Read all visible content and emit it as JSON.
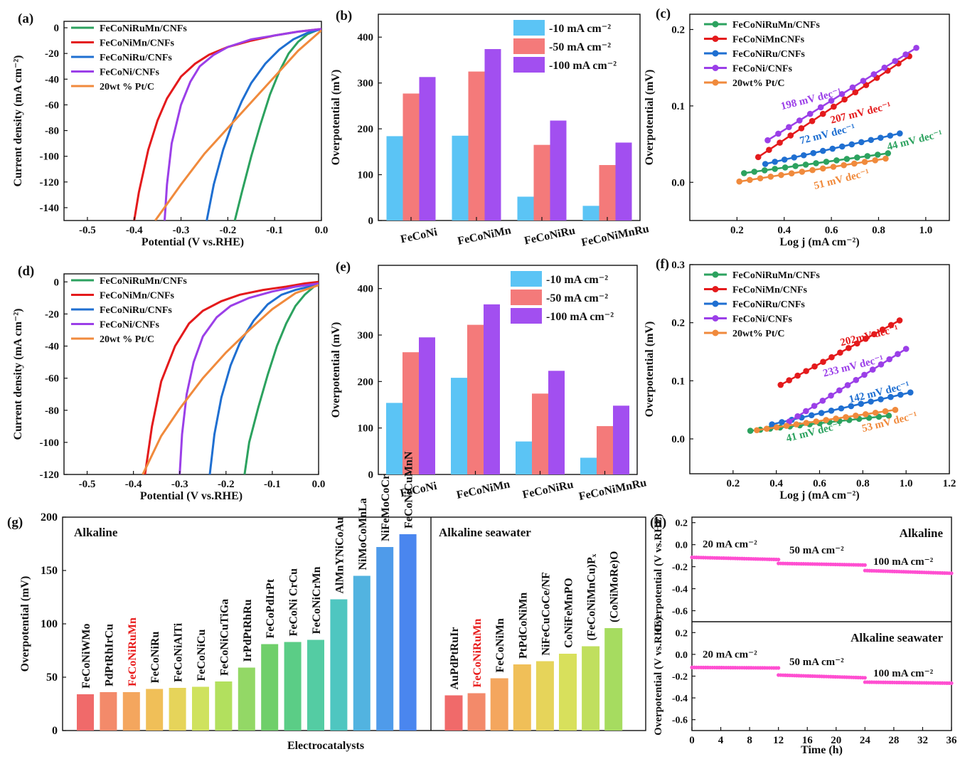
{
  "figure": {
    "description_free": true
  },
  "chart_data": [
    {
      "id": "a",
      "type": "line",
      "panel_label": "(a)",
      "xlabel": "Potential (V vs.RHE)",
      "ylabel": "Current density (mA cm⁻²)",
      "xlim": [
        -0.55,
        0.0
      ],
      "ylim": [
        -150,
        5
      ],
      "xticks": [
        -0.5,
        -0.4,
        -0.3,
        -0.2,
        -0.1,
        0.0
      ],
      "xtick_labels": [
        "-0.5",
        "-0.4",
        "-0.3",
        "-0.2",
        "-0.1",
        "0.0"
      ],
      "yticks": [
        0,
        -20,
        -40,
        -60,
        -80,
        -100,
        -120,
        -140
      ],
      "ytick_labels": [
        "0",
        "-20",
        "-40",
        "-60",
        "-80",
        "-100",
        "-120",
        "-140"
      ],
      "legend_position": "top-left",
      "series": [
        {
          "name": "FeCoNiRuMn/CNFs",
          "color": "#2ca25f",
          "x": [
            -0.185,
            -0.17,
            -0.15,
            -0.13,
            -0.11,
            -0.09,
            -0.07,
            -0.05,
            -0.03,
            -0.01,
            0.0
          ],
          "y": [
            -150,
            -128,
            -100,
            -75,
            -52,
            -34,
            -20,
            -11,
            -5,
            -2,
            -1
          ]
        },
        {
          "name": "FeCoNiMn/CNFs",
          "color": "#e41a1c",
          "x": [
            -0.4,
            -0.39,
            -0.37,
            -0.35,
            -0.33,
            -0.3,
            -0.27,
            -0.24,
            -0.2,
            -0.15,
            -0.1,
            -0.05,
            0.0
          ],
          "y": [
            -150,
            -128,
            -95,
            -72,
            -55,
            -38,
            -28,
            -21,
            -15,
            -10,
            -6,
            -3,
            -1
          ]
        },
        {
          "name": "FeCoNiRu/CNFs",
          "color": "#1f6fd1",
          "x": [
            -0.245,
            -0.23,
            -0.21,
            -0.19,
            -0.17,
            -0.15,
            -0.12,
            -0.09,
            -0.06,
            -0.03,
            0.0
          ],
          "y": [
            -150,
            -122,
            -95,
            -74,
            -57,
            -43,
            -28,
            -17,
            -9,
            -4,
            -1
          ]
        },
        {
          "name": "FeCoNi/CNFs",
          "color": "#9b3fe8",
          "x": [
            -0.335,
            -0.33,
            -0.32,
            -0.3,
            -0.28,
            -0.26,
            -0.23,
            -0.2,
            -0.15,
            -0.1,
            -0.05,
            0.0
          ],
          "y": [
            -150,
            -122,
            -90,
            -60,
            -42,
            -30,
            -21,
            -15,
            -9,
            -6,
            -3,
            -1
          ]
        },
        {
          "name": "20wt % Pt/C",
          "color": "#f08a3c",
          "x": [
            -0.355,
            -0.3,
            -0.25,
            -0.2,
            -0.15,
            -0.1,
            -0.05,
            0.0
          ],
          "y": [
            -150,
            -122,
            -98,
            -78,
            -58,
            -38,
            -18,
            -2
          ]
        }
      ]
    },
    {
      "id": "b",
      "type": "bar",
      "panel_label": "(b)",
      "xlabel": "",
      "ylabel": "Overpotential (mV)",
      "ylim": [
        0,
        450
      ],
      "yticks": [
        0,
        100,
        200,
        300,
        400
      ],
      "ytick_labels": [
        "0",
        "100",
        "200",
        "300",
        "400"
      ],
      "categories": [
        "FeCoNi",
        "FeCoNiMn",
        "FeCoNiRu",
        "FeCoNiMnRu"
      ],
      "legend_position": "top-right",
      "series": [
        {
          "name": "-10 mA cm⁻²",
          "color": "#5bc4f5",
          "values": [
            184,
            185,
            52,
            32
          ]
        },
        {
          "name": "-50 mA cm⁻²",
          "color": "#f47a7a",
          "values": [
            277,
            325,
            165,
            121
          ]
        },
        {
          "name": "-100 mA cm⁻²",
          "color": "#a24ff0",
          "values": [
            313,
            374,
            218,
            170
          ]
        }
      ]
    },
    {
      "id": "c",
      "type": "line",
      "panel_label": "(c)",
      "xlabel": "Log j (mA cm⁻²)",
      "ylabel": "Overpotential (mV)",
      "xlim": [
        0.0,
        1.1
      ],
      "ylim": [
        -0.05,
        0.22
      ],
      "xticks": [
        0.2,
        0.4,
        0.6,
        0.8,
        1.0
      ],
      "xtick_labels": [
        "0.2",
        "0.4",
        "0.6",
        "0.8",
        "1.0"
      ],
      "yticks": [
        0.0,
        0.1,
        0.2
      ],
      "ytick_labels": [
        "0.0",
        "0.1",
        "0.2"
      ],
      "legend_position": "top-left",
      "series": [
        {
          "name": "FeCoNiRuMn/CNFs",
          "color": "#2ca25f",
          "x0": 0.23,
          "x1": 0.84,
          "y0": 0.012,
          "y1": 0.038
        },
        {
          "name": "FeCoNiMnCNFs",
          "color": "#e41a1c",
          "x0": 0.29,
          "x1": 0.93,
          "y0": 0.033,
          "y1": 0.165
        },
        {
          "name": "FeCoNiRu/CNFs",
          "color": "#1f6fd1",
          "x0": 0.32,
          "x1": 0.89,
          "y0": 0.024,
          "y1": 0.064
        },
        {
          "name": "FeCoNi/CNFs",
          "color": "#9b3fe8",
          "x0": 0.33,
          "x1": 0.96,
          "y0": 0.055,
          "y1": 0.176
        },
        {
          "name": "20wt% Pt/C",
          "color": "#f08a3c",
          "x0": 0.21,
          "x1": 0.83,
          "y0": 0.001,
          "y1": 0.031
        }
      ],
      "annotations": [
        {
          "text": "198 mV dec⁻¹",
          "color": "#9b3fe8",
          "x": 0.39,
          "y": 0.095
        },
        {
          "text": "207 mV dec⁻¹",
          "color": "#e41a1c",
          "x": 0.6,
          "y": 0.077
        },
        {
          "text": "72 mV dec⁻¹",
          "color": "#1f6fd1",
          "x": 0.47,
          "y": 0.05
        },
        {
          "text": "44 mV dec⁻¹",
          "color": "#2ca25f",
          "x": 0.84,
          "y": 0.042
        },
        {
          "text": "51 mV dec⁻¹",
          "color": "#f08a3c",
          "x": 0.53,
          "y": -0.009
        }
      ]
    },
    {
      "id": "d",
      "type": "line",
      "panel_label": "(d)",
      "xlabel": "Potential (V vs.RHE)",
      "ylabel": "Current density (mA cm⁻²)",
      "xlim": [
        -0.55,
        0.0
      ],
      "ylim": [
        -120,
        5
      ],
      "xticks": [
        -0.5,
        -0.4,
        -0.3,
        -0.2,
        -0.1,
        0.0
      ],
      "xtick_labels": [
        "-0.5",
        "-0.4",
        "-0.3",
        "-0.2",
        "-0.1",
        "0.0"
      ],
      "yticks": [
        0,
        -20,
        -40,
        -60,
        -80,
        -100,
        -120
      ],
      "ytick_labels": [
        "0",
        "-20",
        "-40",
        "-60",
        "-80",
        "-100",
        "-120"
      ],
      "legend_position": "top-left",
      "series": [
        {
          "name": "FeCoNiRuMn/CNFs",
          "color": "#2ca25f",
          "x": [
            -0.16,
            -0.15,
            -0.13,
            -0.11,
            -0.09,
            -0.07,
            -0.05,
            -0.03,
            -0.01,
            0.0
          ],
          "y": [
            -120,
            -100,
            -78,
            -58,
            -40,
            -26,
            -15,
            -8,
            -3,
            -2
          ]
        },
        {
          "name": "FeCoNiMn/CNFs",
          "color": "#e41a1c",
          "x": [
            -0.375,
            -0.36,
            -0.34,
            -0.31,
            -0.28,
            -0.25,
            -0.21,
            -0.17,
            -0.12,
            -0.07,
            -0.03,
            0.0
          ],
          "y": [
            -120,
            -90,
            -62,
            -40,
            -26,
            -18,
            -12,
            -8,
            -5,
            -3,
            -1,
            0
          ]
        },
        {
          "name": "FeCoNiRu/CNFs",
          "color": "#1f6fd1",
          "x": [
            -0.235,
            -0.225,
            -0.21,
            -0.19,
            -0.17,
            -0.14,
            -0.11,
            -0.08,
            -0.05,
            -0.02,
            0.0
          ],
          "y": [
            -120,
            -95,
            -72,
            -52,
            -38,
            -24,
            -14,
            -8,
            -5,
            -3,
            -2
          ]
        },
        {
          "name": "FeCoNi/CNFs",
          "color": "#9b3fe8",
          "x": [
            -0.3,
            -0.295,
            -0.285,
            -0.27,
            -0.25,
            -0.22,
            -0.19,
            -0.15,
            -0.1,
            -0.05,
            0.0
          ],
          "y": [
            -120,
            -95,
            -70,
            -50,
            -34,
            -22,
            -15,
            -10,
            -6,
            -3,
            -1
          ]
        },
        {
          "name": "20wt % Pt/C",
          "color": "#f08a3c",
          "x": [
            -0.38,
            -0.34,
            -0.3,
            -0.25,
            -0.2,
            -0.15,
            -0.1,
            -0.05,
            0.0
          ],
          "y": [
            -120,
            -96,
            -79,
            -60,
            -44,
            -30,
            -17,
            -7,
            -2
          ]
        }
      ]
    },
    {
      "id": "e",
      "type": "bar",
      "panel_label": "(e)",
      "xlabel": "",
      "ylabel": "Overpotential (mV)",
      "ylim": [
        0,
        450
      ],
      "yticks": [
        0,
        100,
        200,
        300,
        400
      ],
      "ytick_labels": [
        "0",
        "100",
        "200",
        "300",
        "400"
      ],
      "categories": [
        "FeCoNi",
        "FeCoNiMn",
        "FeCoNiRu",
        "FeCoNiMnRu"
      ],
      "legend_position": "top-right",
      "series": [
        {
          "name": "-10 mA cm⁻²",
          "color": "#5bc4f5",
          "values": [
            154,
            208,
            71,
            36
          ]
        },
        {
          "name": "-50 mA cm⁻²",
          "color": "#f47a7a",
          "values": [
            263,
            322,
            174,
            104
          ]
        },
        {
          "name": "-100 mA cm⁻²",
          "color": "#a24ff0",
          "values": [
            295,
            366,
            223,
            148
          ]
        }
      ]
    },
    {
      "id": "f",
      "type": "line",
      "panel_label": "(f)",
      "xlabel": "Log j (mA cm⁻²)",
      "ylabel": "Overpotential (mV)",
      "xlim": [
        0.0,
        1.2
      ],
      "ylim": [
        -0.06,
        0.3
      ],
      "xticks": [
        0.2,
        0.4,
        0.6,
        0.8,
        1.0,
        1.2
      ],
      "xtick_labels": [
        "0.2",
        "0.4",
        "0.6",
        "0.8",
        "1.0",
        "1.2"
      ],
      "yticks": [
        0.0,
        0.1,
        0.2,
        0.3
      ],
      "ytick_labels": [
        "0.0",
        "0.1",
        "0.2",
        "0.3"
      ],
      "legend_position": "top-left",
      "series": [
        {
          "name": "FeCoNiRuMn/CNFs",
          "color": "#2ca25f",
          "x0": 0.28,
          "x1": 0.92,
          "y0": 0.014,
          "y1": 0.04
        },
        {
          "name": "FeCoNiMn/CNFs",
          "color": "#e41a1c",
          "x0": 0.42,
          "x1": 0.97,
          "y0": 0.093,
          "y1": 0.204
        },
        {
          "name": "FeCoNiRu/CNFs",
          "color": "#1f6fd1",
          "x0": 0.38,
          "x1": 1.02,
          "y0": 0.025,
          "y1": 0.08
        },
        {
          "name": "FeCoNi/CNFs",
          "color": "#9b3fe8",
          "x0": 0.46,
          "x1": 1.0,
          "y0": 0.03,
          "y1": 0.155
        },
        {
          "name": "20wt% Pt/C",
          "color": "#f08a3c",
          "x0": 0.31,
          "x1": 0.95,
          "y0": 0.015,
          "y1": 0.05
        }
      ],
      "annotations": [
        {
          "text": "202mV dec⁻¹",
          "color": "#e41a1c",
          "x": 0.7,
          "y": 0.16
        },
        {
          "text": "233 mV dec⁻¹",
          "color": "#9b3fe8",
          "x": 0.62,
          "y": 0.107
        },
        {
          "text": "142 mV dec⁻¹",
          "color": "#1f6fd1",
          "x": 0.74,
          "y": 0.062
        },
        {
          "text": "41 mV dec⁻¹",
          "color": "#2ca25f",
          "x": 0.45,
          "y": -0.005
        },
        {
          "text": "53 mV dec⁻¹",
          "color": "#f08a3c",
          "x": 0.8,
          "y": 0.012
        }
      ]
    },
    {
      "id": "g",
      "type": "bar",
      "panel_label": "(g)",
      "xlabel": "Electrocatalysts",
      "ylabel": "Overpotential (mV)",
      "ylim": [
        0,
        200
      ],
      "yticks": [
        0,
        50,
        100,
        150,
        200
      ],
      "ytick_labels": [
        "0",
        "50",
        "100",
        "150",
        "200"
      ],
      "groups": [
        {
          "title": "Alkaline",
          "categories": [
            "FeCoNiWMo",
            "PdPtRhIrCu",
            "FeCoNiRuMn",
            "FeCoNiRu",
            "FeCoNiAlTi",
            "FeCoNiCu",
            "FeCoNiCuTiGa",
            "IrPdPtRhRu",
            "FeCoPdIrPt",
            "FeCoNi CrCu",
            "FeCoNiCrMn",
            "AlMnYNiCoAu",
            "NiMoCoMnLa",
            "NiFeMoCoCr",
            "FeCoNiCuMnN"
          ],
          "values": [
            34,
            36,
            36,
            39,
            40,
            41,
            46,
            59,
            81,
            83,
            85,
            123,
            145,
            172,
            184
          ],
          "highlight": "FeCoNiRuMn"
        },
        {
          "title": "Alkaline seawater",
          "categories": [
            "AuPdPtRuIr",
            "FeCoNiRuMn",
            "FeCoNiMn",
            "PtPdCoNiMn",
            "NiFeCuCoCe/NF",
            "CoNiFeMnPO",
            "(FeCoNiMnCu)Pₓ",
            "(CoNiMoRe)O"
          ],
          "values": [
            33,
            35,
            49,
            62,
            65,
            72,
            79,
            96
          ],
          "highlight": "FeCoNiRuMn"
        }
      ]
    },
    {
      "id": "h",
      "type": "line",
      "panel_label": "(h)",
      "xlabel": "Time (h)",
      "xlim": [
        0,
        36
      ],
      "xticks": [
        0,
        4,
        8,
        12,
        16,
        20,
        24,
        28,
        32,
        36
      ],
      "xtick_labels": [
        "0",
        "4",
        "8",
        "12",
        "16",
        "20",
        "24",
        "28",
        "32",
        "36"
      ],
      "panels": [
        {
          "title": "Alkaline",
          "ylabel": "Overpotential (V vs.RHE)",
          "ylim": [
            -0.7,
            0.25
          ],
          "yticks": [
            0.2,
            0.0,
            -0.2,
            -0.4,
            -0.6
          ],
          "ytick_labels": [
            "0.2",
            "0.0",
            "-0.2",
            "-0.4",
            "-0.6"
          ],
          "segments": [
            {
              "label": "20 mA cm⁻²",
              "x0": 0,
              "x1": 12,
              "y0": -0.115,
              "y1": -0.135
            },
            {
              "label": "50 mA cm⁻²",
              "x0": 12,
              "x1": 24,
              "y0": -0.17,
              "y1": -0.185
            },
            {
              "label": "100 mA cm⁻²",
              "x0": 24,
              "x1": 36,
              "y0": -0.235,
              "y1": -0.26
            }
          ]
        },
        {
          "title": "Alkaline seawater",
          "ylabel": "Overpotential (V vs.RHE)",
          "ylim": [
            -0.7,
            0.3
          ],
          "yticks": [
            0.2,
            0.0,
            -0.2,
            -0.4,
            -0.6
          ],
          "ytick_labels": [
            "0.2",
            "0.0",
            "-0.2",
            "-0.4",
            "-0.6"
          ],
          "segments": [
            {
              "label": "20 mA cm⁻²",
              "x0": 0,
              "x1": 12,
              "y0": -0.12,
              "y1": -0.125
            },
            {
              "label": "50 mA cm⁻²",
              "x0": 12,
              "x1": 24,
              "y0": -0.19,
              "y1": -0.215
            },
            {
              "label": "100 mA cm⁻²",
              "x0": 24,
              "x1": 36,
              "y0": -0.255,
              "y1": -0.265
            }
          ]
        }
      ],
      "series_color": "#ff4fd1"
    }
  ]
}
